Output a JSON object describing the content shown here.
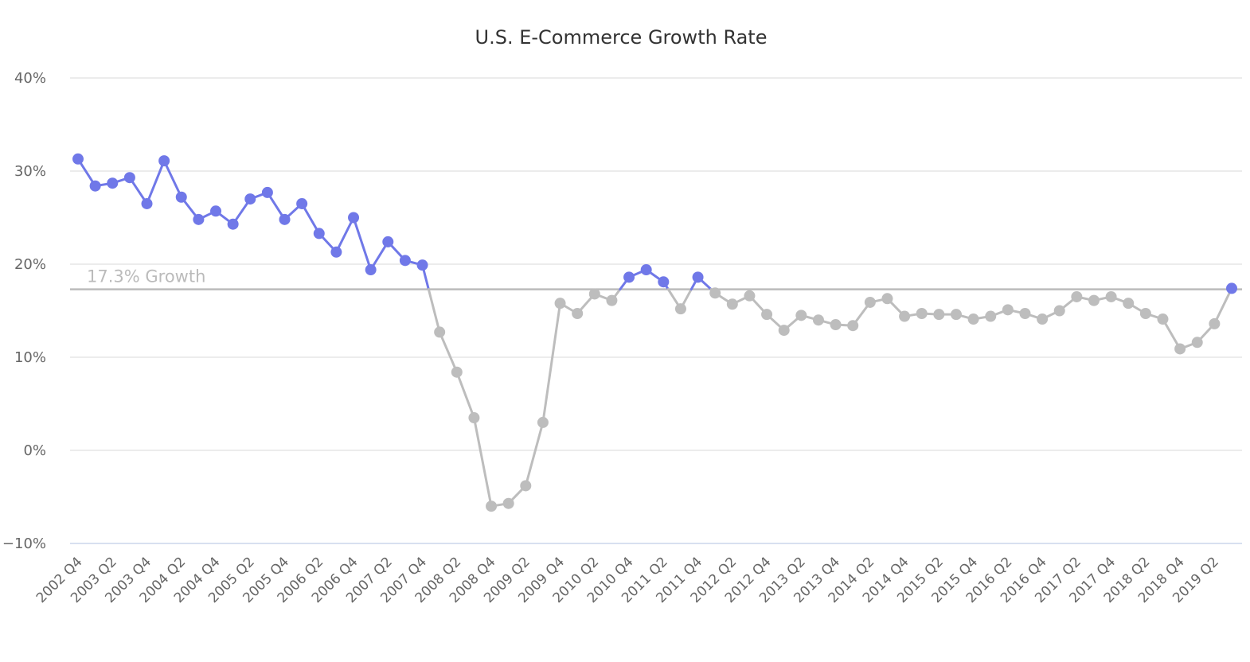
{
  "chart_data": {
    "type": "line",
    "title": "U.S. E-Commerce Growth Rate",
    "xlabel": "",
    "ylabel": "",
    "ylim": [
      -10,
      40
    ],
    "y_ticks": [
      -10,
      0,
      10,
      20,
      30,
      40
    ],
    "y_tick_labels": [
      "−10%",
      "0%",
      "10%",
      "20%",
      "30%",
      "40%"
    ],
    "grid": true,
    "legend": "none",
    "colors": {
      "above_threshold": "#7078e8",
      "below_threshold": "#bdbdbd",
      "gridline": "#e6e6e6",
      "reference_line": "#bbbbbb",
      "axis": "#ccd6eb"
    },
    "reference_line": {
      "value": 17.3,
      "label": "17.3% Growth"
    },
    "x_tick_labels": [
      "2002 Q4",
      "2003 Q2",
      "2003 Q4",
      "2004 Q2",
      "2004 Q4",
      "2005 Q2",
      "2005 Q4",
      "2006 Q2",
      "2006 Q4",
      "2007 Q2",
      "2007 Q4",
      "2008 Q2",
      "2008 Q4",
      "2009 Q2",
      "2009 Q4",
      "2010 Q2",
      "2010 Q4",
      "2011 Q2",
      "2011 Q4",
      "2012 Q2",
      "2012 Q4",
      "2013 Q2",
      "2013 Q4",
      "2014 Q2",
      "2014 Q4",
      "2015 Q2",
      "2015 Q4",
      "2016 Q2",
      "2016 Q4",
      "2017 Q2",
      "2017 Q4",
      "2018 Q2",
      "2018 Q4",
      "2019 Q2"
    ],
    "x": [
      "2002 Q4",
      "2003 Q1",
      "2003 Q2",
      "2003 Q3",
      "2003 Q4",
      "2004 Q1",
      "2004 Q2",
      "2004 Q3",
      "2004 Q4",
      "2005 Q1",
      "2005 Q2",
      "2005 Q3",
      "2005 Q4",
      "2006 Q1",
      "2006 Q2",
      "2006 Q3",
      "2006 Q4",
      "2007 Q1",
      "2007 Q2",
      "2007 Q3",
      "2007 Q4",
      "2008 Q1",
      "2008 Q2",
      "2008 Q3",
      "2008 Q4",
      "2009 Q1",
      "2009 Q2",
      "2009 Q3",
      "2009 Q4",
      "2010 Q1",
      "2010 Q2",
      "2010 Q3",
      "2010 Q4",
      "2011 Q1",
      "2011 Q2",
      "2011 Q3",
      "2011 Q4",
      "2012 Q1",
      "2012 Q2",
      "2012 Q3",
      "2012 Q4",
      "2013 Q1",
      "2013 Q2",
      "2013 Q3",
      "2013 Q4",
      "2014 Q1",
      "2014 Q2",
      "2014 Q3",
      "2014 Q4",
      "2015 Q1",
      "2015 Q2",
      "2015 Q3",
      "2015 Q4",
      "2016 Q1",
      "2016 Q2",
      "2016 Q3",
      "2016 Q4",
      "2017 Q1",
      "2017 Q2",
      "2017 Q3",
      "2017 Q4",
      "2018 Q1",
      "2018 Q2",
      "2018 Q3",
      "2018 Q4",
      "2019 Q1",
      "2019 Q2",
      "2019 Q3"
    ],
    "series": [
      {
        "values": [
          31.3,
          28.4,
          28.7,
          29.3,
          26.5,
          31.1,
          27.2,
          24.8,
          25.7,
          24.3,
          27.0,
          27.7,
          24.8,
          26.5,
          23.3,
          21.3,
          25.0,
          19.4,
          22.4,
          20.4,
          19.9,
          12.7,
          8.4,
          3.5,
          -6.0,
          -5.7,
          -3.8,
          3.0,
          15.8,
          14.7,
          16.8,
          16.1,
          18.6,
          19.4,
          18.1,
          15.2,
          18.6,
          16.9,
          15.7,
          16.6,
          14.6,
          12.9,
          14.5,
          14.0,
          13.5,
          13.4,
          15.9,
          16.3,
          14.4,
          14.7,
          14.6,
          14.6,
          14.1,
          14.4,
          15.1,
          14.7,
          14.1,
          15.0,
          16.5,
          16.1,
          16.5,
          15.8,
          14.7,
          14.1,
          10.9,
          11.6,
          13.6,
          17.4
        ]
      }
    ]
  }
}
